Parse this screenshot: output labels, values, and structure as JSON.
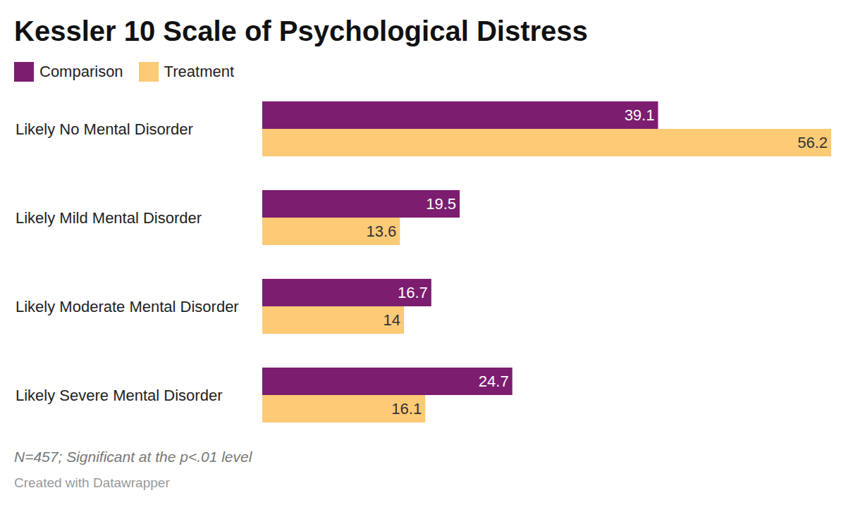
{
  "chart_data": {
    "type": "bar",
    "title": "Kessler 10 Scale of Psychological Distress",
    "orientation": "horizontal",
    "categories": [
      "Likely No Mental Disorder",
      "Likely Mild Mental Disorder",
      "Likely Moderate Mental Disorder",
      "Likely Severe Mental Disorder"
    ],
    "series": [
      {
        "name": "Comparison",
        "color": "#7c1d6f",
        "values": [
          39.1,
          19.5,
          16.7,
          24.7
        ]
      },
      {
        "name": "Treatment",
        "color": "#fdca76",
        "values": [
          56.2,
          13.6,
          14,
          16.1
        ]
      }
    ],
    "xlim": [
      0,
      56.2
    ],
    "data_labels": true,
    "tick_labels": "y",
    "legend": "top-left",
    "annotations": [
      "N=457; Significant at the p<.01 level",
      "Created with Datawrapper"
    ]
  }
}
